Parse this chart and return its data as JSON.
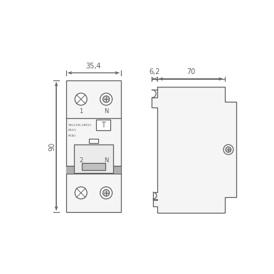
{
  "bg_color": "#ffffff",
  "line_color": "#606060",
  "fill_body": "#f5f5f5",
  "fill_white": "#ffffff",
  "fill_gray": "#bbbbbb",
  "fill_mid_gray": "#d0d0d0",
  "dim_35": "35,4",
  "dim_90": "90",
  "dim_6": "6,2",
  "dim_70": "70"
}
